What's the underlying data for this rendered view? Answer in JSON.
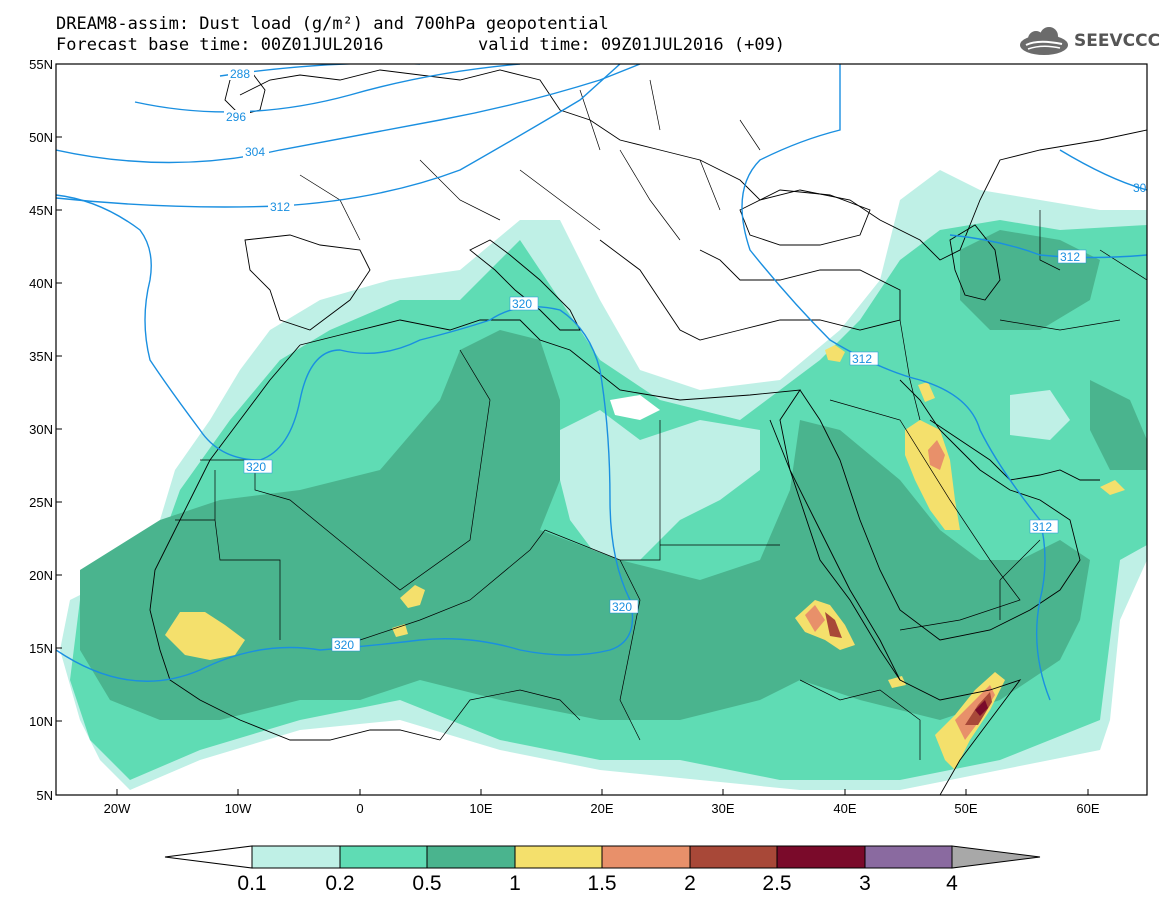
{
  "header": {
    "title_line1": "DREAM8-assim: Dust load (g/m²) and 700hPa geopotential",
    "title_line2": "Forecast base time: 00Z01JUL2016",
    "valid_time": "valid time: 09Z01JUL2016 (+09)"
  },
  "logo": {
    "text": "SEEVCCC",
    "icon": "cloud-icon"
  },
  "map": {
    "lat_labels": [
      "55N",
      "50N",
      "45N",
      "40N",
      "35N",
      "30N",
      "25N",
      "20N",
      "15N",
      "10N",
      "5N"
    ],
    "lon_labels": [
      "20W",
      "10W",
      "0",
      "10E",
      "20E",
      "30E",
      "40E",
      "50E",
      "60E"
    ],
    "contour_labels": [
      "288",
      "296",
      "304",
      "312",
      "320",
      "320",
      "320",
      "320",
      "312",
      "312",
      "312",
      "30"
    ]
  },
  "colorbar": {
    "ticks": [
      "0.1",
      "0.2",
      "0.5",
      "1",
      "1.5",
      "2",
      "2.5",
      "3",
      "4"
    ],
    "colors": [
      "#ffffff",
      "#bff0e6",
      "#5fdcb4",
      "#4ab48e",
      "#f4e06c",
      "#e8906a",
      "#a84838",
      "#7a0a2a",
      "#8a6aa0",
      "#a8a8a8"
    ]
  },
  "colors": {
    "c01": "#bff0e6",
    "c02": "#5fdcb4",
    "c05": "#4ab48e",
    "c1": "#f4e06c",
    "c15": "#e8906a",
    "c2": "#a84838",
    "c25": "#7a0a2a",
    "contour": "#1a8fe0"
  }
}
